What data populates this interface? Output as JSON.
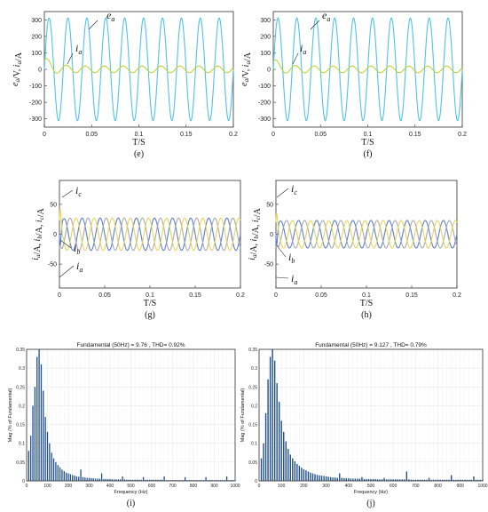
{
  "chart_data": [
    {
      "id": "e",
      "type": "line",
      "panel_label": "(e)",
      "xlabel": "T/S",
      "ylabel": "e_a/V, i_a/A",
      "xlim": [
        0,
        0.2
      ],
      "ylim": [
        -350,
        350
      ],
      "xticks": [
        "0",
        "0.05",
        "0.1",
        "0.15",
        "0.2"
      ],
      "yticks": [
        "-300",
        "-200",
        "-100",
        "0",
        "100",
        "200",
        "300"
      ],
      "series": [
        {
          "name": "e_a",
          "color": "#4fc3e8",
          "kind": "sine",
          "amp": 311,
          "freq": 50
        },
        {
          "name": "i_a",
          "color": "#c6cf3a",
          "kind": "current",
          "amp": 20,
          "freq": 50,
          "inrush": 60,
          "decay": 0.01
        }
      ]
    },
    {
      "id": "f",
      "type": "line",
      "panel_label": "(f)",
      "xlabel": "T/S",
      "ylabel": "e_a/V, i_a/A",
      "xlim": [
        0,
        0.2
      ],
      "ylim": [
        -350,
        350
      ],
      "xticks": [
        "0",
        "0.05",
        "0.1",
        "0.15",
        "0.2"
      ],
      "yticks": [
        "-300",
        "-200",
        "-100",
        "0",
        "100",
        "200",
        "300"
      ],
      "series": [
        {
          "name": "e_a",
          "color": "#4fc3e8",
          "kind": "sine",
          "amp": 311,
          "freq": 50
        },
        {
          "name": "i_a",
          "color": "#c6cf3a",
          "kind": "current",
          "amp": 20,
          "freq": 50,
          "inrush": 50,
          "decay": 0.009
        }
      ]
    },
    {
      "id": "g",
      "type": "line",
      "panel_label": "(g)",
      "xlabel": "T/S",
      "ylabel": "i_a/A, i_b/A, i_c/A",
      "xlim": [
        0,
        0.2
      ],
      "ylim": [
        -90,
        90
      ],
      "xticks": [
        "0",
        "0.05",
        "0.1",
        "0.15",
        "0.2"
      ],
      "yticks": [
        "-50",
        "0",
        "50"
      ],
      "series": [
        {
          "name": "i_a",
          "color": "#5b7fc8",
          "kind": "phase",
          "amp": 27,
          "freq": 50,
          "phase": 0,
          "inrush": -80
        },
        {
          "name": "i_b",
          "color": "#a9a9a9",
          "kind": "phase",
          "amp": 27,
          "freq": 50,
          "phase": -120,
          "inrush": 20
        },
        {
          "name": "i_c",
          "color": "#e8d55a",
          "kind": "phase",
          "amp": 27,
          "freq": 50,
          "phase": 120,
          "inrush": 70
        }
      ]
    },
    {
      "id": "h",
      "type": "line",
      "panel_label": "(h)",
      "xlabel": "T/S",
      "ylabel": "i_a/A, i_b/A, i_c/A",
      "xlim": [
        0,
        0.2
      ],
      "ylim": [
        -90,
        90
      ],
      "xticks": [
        "0",
        "0.05",
        "0.1",
        "0.15",
        "0.2"
      ],
      "yticks": [
        "-50",
        "0",
        "50"
      ],
      "series": [
        {
          "name": "i_a",
          "color": "#5b7fc8",
          "kind": "phase",
          "amp": 23,
          "freq": 50,
          "phase": 0,
          "inrush": -70
        },
        {
          "name": "i_b",
          "color": "#a9a9a9",
          "kind": "phase",
          "amp": 23,
          "freq": 50,
          "phase": -120,
          "inrush": 15
        },
        {
          "name": "i_c",
          "color": "#e8d55a",
          "kind": "phase",
          "amp": 23,
          "freq": 50,
          "phase": 120,
          "inrush": 55
        }
      ]
    },
    {
      "id": "i",
      "type": "bar",
      "panel_label": "(i)",
      "title": "Fundamental (50Hz) = 9.76 , THD= 0.92%",
      "xlabel": "Frequency (Hz)",
      "ylabel": "Mag (% of Fundamental)",
      "xlim": [
        0,
        1000
      ],
      "ylim": [
        0,
        0.35
      ],
      "grid": true,
      "xticks": [
        "0",
        "100",
        "200",
        "300",
        "400",
        "500",
        "600",
        "700",
        "800",
        "900",
        "1000"
      ],
      "yticks": [
        "0",
        "0.05",
        "0.1",
        "0.15",
        "0.2",
        "0.25",
        "0.3",
        "0.35"
      ],
      "bar_color": "#1f4e8c",
      "bin_width_hz": 10,
      "values": [
        0.08,
        0.12,
        0.2,
        0.25,
        0.33,
        0.35,
        0.31,
        0.24,
        0.17,
        0.13,
        0.1,
        0.075,
        0.06,
        0.05,
        0.042,
        0.036,
        0.03,
        0.026,
        0.022,
        0.02,
        0.018,
        0.016,
        0.014,
        0.012,
        0.011,
        0.03,
        0.01,
        0.009,
        0.008,
        0.008,
        0.007,
        0.007,
        0.006,
        0.006,
        0.006,
        0.02,
        0.005,
        0.005,
        0.005,
        0.005,
        0.004,
        0.004,
        0.004,
        0.004,
        0.004,
        0.012,
        0.004,
        0.003,
        0.003,
        0.003,
        0.003,
        0.003,
        0.003,
        0.003,
        0.003,
        0.01,
        0.003,
        0.003,
        0.003,
        0.003,
        0.003,
        0.003,
        0.003,
        0.003,
        0.003,
        0.012,
        0.002,
        0.002,
        0.002,
        0.002,
        0.002,
        0.002,
        0.002,
        0.002,
        0.002,
        0.01,
        0.002,
        0.002,
        0.002,
        0.002,
        0.002,
        0.002,
        0.002,
        0.002,
        0.002,
        0.01,
        0.002,
        0.002,
        0.002,
        0.002,
        0.002,
        0.002,
        0.002,
        0.002,
        0.002,
        0.012,
        0.002,
        0.002,
        0.002,
        0.002
      ]
    },
    {
      "id": "j",
      "type": "bar",
      "panel_label": "(j)",
      "title": "Fundamental (50Hz) = 9.127 , THD= 0.79%",
      "xlabel": "Frequency (Hz)",
      "ylabel": "Mag (% of Fundamental)",
      "xlim": [
        0,
        1000
      ],
      "ylim": [
        0,
        0.35
      ],
      "grid": true,
      "xticks": [
        "0",
        "100",
        "200",
        "300",
        "400",
        "500",
        "600",
        "700",
        "800",
        "900",
        "1000"
      ],
      "yticks": [
        "0",
        "0.05",
        "0.1",
        "0.15",
        "0.2",
        "0.25",
        "0.3",
        "0.35"
      ],
      "bar_color": "#1f4e8c",
      "bin_width_hz": 10,
      "values": [
        0.06,
        0.1,
        0.18,
        0.27,
        0.33,
        0.36,
        0.32,
        0.26,
        0.21,
        0.16,
        0.13,
        0.105,
        0.085,
        0.07,
        0.06,
        0.052,
        0.045,
        0.04,
        0.035,
        0.031,
        0.028,
        0.025,
        0.022,
        0.02,
        0.018,
        0.016,
        0.015,
        0.014,
        0.013,
        0.012,
        0.011,
        0.01,
        0.009,
        0.009,
        0.008,
        0.02,
        0.008,
        0.007,
        0.007,
        0.007,
        0.006,
        0.006,
        0.006,
        0.006,
        0.006,
        0.01,
        0.005,
        0.005,
        0.005,
        0.005,
        0.005,
        0.005,
        0.004,
        0.004,
        0.004,
        0.008,
        0.004,
        0.004,
        0.004,
        0.004,
        0.004,
        0.004,
        0.004,
        0.004,
        0.004,
        0.025,
        0.004,
        0.003,
        0.003,
        0.003,
        0.003,
        0.003,
        0.003,
        0.003,
        0.003,
        0.008,
        0.003,
        0.003,
        0.003,
        0.003,
        0.003,
        0.003,
        0.003,
        0.003,
        0.003,
        0.015,
        0.003,
        0.003,
        0.003,
        0.003,
        0.003,
        0.003,
        0.003,
        0.003,
        0.003,
        0.012,
        0.003,
        0.003,
        0.003,
        0.003
      ]
    }
  ]
}
